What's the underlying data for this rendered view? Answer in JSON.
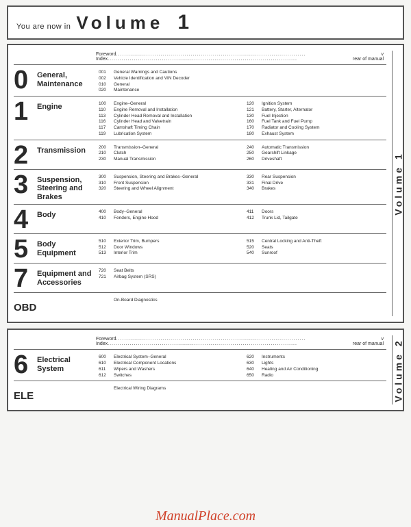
{
  "title": {
    "prefix": "You are now in",
    "word": "Volume",
    "num": "1"
  },
  "foreword": [
    {
      "label": "Foreword",
      "val": "v"
    },
    {
      "label": "Index",
      "val": "rear of manual"
    }
  ],
  "vol1_label": "Volume 1",
  "vol2_label": "Volume 2",
  "sections1": [
    {
      "num": "0",
      "title": "General,\nMaintenance",
      "cols": [
        [
          {
            "code": "001",
            "desc": "General Warnings and Cautions"
          },
          {
            "code": "002",
            "desc": "Vehicle Identification and VIN Decoder"
          },
          {
            "code": "010",
            "desc": "General"
          },
          {
            "code": "020",
            "desc": "Maintenance"
          }
        ],
        []
      ]
    },
    {
      "num": "1",
      "title": "Engine",
      "cols": [
        [
          {
            "code": "100",
            "desc": "Engine–General"
          },
          {
            "code": "110",
            "desc": "Engine Removal and Installation"
          },
          {
            "code": "113",
            "desc": "Cylinder Head Removal and Installation"
          },
          {
            "code": "116",
            "desc": "Cylinder Head and Valvetrain"
          },
          {
            "code": "117",
            "desc": "Camshaft Timing Chain"
          },
          {
            "code": "119",
            "desc": "Lubrication System"
          }
        ],
        [
          {
            "code": "120",
            "desc": "Ignition System"
          },
          {
            "code": "121",
            "desc": "Battery, Starter, Alternator"
          },
          {
            "code": "130",
            "desc": "Fuel Injection"
          },
          {
            "code": "160",
            "desc": "Fuel Tank and Fuel Pump"
          },
          {
            "code": "170",
            "desc": "Radiator and Cooling System"
          },
          {
            "code": "180",
            "desc": "Exhaust System"
          }
        ]
      ]
    },
    {
      "num": "2",
      "title": "Transmission",
      "cols": [
        [
          {
            "code": "200",
            "desc": "Transmission–General"
          },
          {
            "code": "210",
            "desc": "Clutch"
          },
          {
            "code": "230",
            "desc": "Manual Transmission"
          }
        ],
        [
          {
            "code": "240",
            "desc": "Automatic Transmission"
          },
          {
            "code": "250",
            "desc": "Gearshift Linkage"
          },
          {
            "code": "260",
            "desc": "Driveshaft"
          }
        ]
      ]
    },
    {
      "num": "3",
      "title": "Suspension,\nSteering and\nBrakes",
      "cols": [
        [
          {
            "code": "300",
            "desc": "Suspension, Steering and Brakes–General"
          },
          {
            "code": "310",
            "desc": "Front Suspension"
          },
          {
            "code": "320",
            "desc": "Steering and Wheel Alignment"
          }
        ],
        [
          {
            "code": "330",
            "desc": "Rear Suspension"
          },
          {
            "code": "331",
            "desc": "Final Drive"
          },
          {
            "code": "340",
            "desc": "Brakes"
          }
        ]
      ]
    },
    {
      "num": "4",
      "title": "Body",
      "cols": [
        [
          {
            "code": "400",
            "desc": "Body–General"
          },
          {
            "code": "410",
            "desc": "Fenders, Engine Hood"
          }
        ],
        [
          {
            "code": "411",
            "desc": "Doors"
          },
          {
            "code": "412",
            "desc": "Trunk Lid, Tailgate"
          }
        ]
      ]
    },
    {
      "num": "5",
      "title": "Body\nEquipment",
      "cols": [
        [
          {
            "code": "510",
            "desc": "Exterior Trim, Bumpers"
          },
          {
            "code": "512",
            "desc": "Door Windows"
          },
          {
            "code": "513",
            "desc": "Interior Trim"
          }
        ],
        [
          {
            "code": "515",
            "desc": "Central Locking and Anti-Theft"
          },
          {
            "code": "520",
            "desc": "Seats"
          },
          {
            "code": "540",
            "desc": "Sunroof"
          }
        ]
      ]
    },
    {
      "num": "7",
      "title": "Equipment and\nAccessories",
      "cols": [
        [
          {
            "code": "720",
            "desc": "Seat Belts"
          },
          {
            "code": "721",
            "desc": "Airbag System (SRS)"
          }
        ],
        []
      ]
    },
    {
      "num": "OBD",
      "small": true,
      "title": "",
      "cols": [
        [
          {
            "code": "",
            "desc": "On-Board Diagnostics"
          }
        ],
        []
      ]
    }
  ],
  "sections2": [
    {
      "num": "6",
      "title": "Electrical\nSystem",
      "cols": [
        [
          {
            "code": "600",
            "desc": "Electrical System–General"
          },
          {
            "code": "610",
            "desc": "Electrical Component Locations"
          },
          {
            "code": "611",
            "desc": "Wipers and Washers"
          },
          {
            "code": "612",
            "desc": "Switches"
          }
        ],
        [
          {
            "code": "620",
            "desc": "Instruments"
          },
          {
            "code": "630",
            "desc": "Lights"
          },
          {
            "code": "640",
            "desc": "Heating and Air Conditioning"
          },
          {
            "code": "650",
            "desc": "Radio"
          }
        ]
      ]
    },
    {
      "num": "ELE",
      "small": true,
      "title": "",
      "cols": [
        [
          {
            "code": "",
            "desc": "Electrical Wiring Diagrams"
          }
        ],
        []
      ]
    }
  ],
  "watermark": "ManualPlace.com"
}
